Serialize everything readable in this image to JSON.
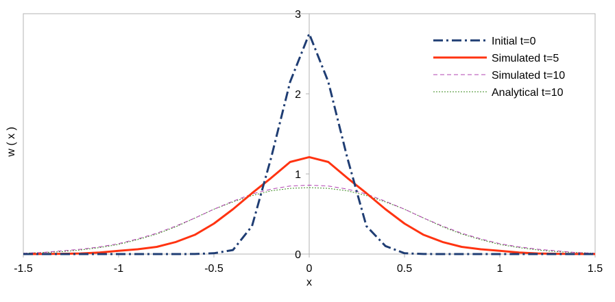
{
  "chart_data": {
    "type": "line",
    "title": "",
    "xlabel": "x",
    "ylabel": "w ( x )",
    "xlim": [
      -1.5,
      1.5
    ],
    "ylim": [
      0,
      3
    ],
    "xticks": [
      -1.5,
      -1,
      -0.5,
      0,
      0.5,
      1,
      1.5
    ],
    "xtick_labels": [
      "-1.5",
      "-1",
      "-0.5",
      "0",
      "0.5",
      "1",
      "1.5"
    ],
    "yticks": [
      0,
      1,
      2,
      3
    ],
    "ytick_labels": [
      "0",
      "1",
      "2",
      "3"
    ],
    "grid": false,
    "legend_position": "top-right",
    "series": [
      {
        "name": "Initial t=0",
        "color": "#1f3d73",
        "style": "dashdot",
        "x": [
          -1.5,
          -1.4,
          -1.3,
          -1.2,
          -1.1,
          -1.0,
          -0.9,
          -0.8,
          -0.7,
          -0.6,
          -0.5,
          -0.4,
          -0.3,
          -0.2,
          -0.1,
          0.0,
          0.1,
          0.2,
          0.3,
          0.4,
          0.5,
          0.6,
          0.7,
          0.8,
          0.9,
          1.0,
          1.1,
          1.2,
          1.3,
          1.4,
          1.5
        ],
        "y": [
          0,
          0,
          0,
          0,
          0,
          0,
          0,
          0,
          0,
          0.001,
          0.01,
          0.05,
          0.35,
          1.2,
          2.15,
          2.75,
          2.15,
          1.2,
          0.35,
          0.1,
          0.01,
          0.001,
          0,
          0,
          0,
          0,
          0,
          0,
          0,
          0,
          0
        ]
      },
      {
        "name": "Simulated t=5",
        "color": "#ff3311",
        "style": "solid",
        "x": [
          -1.5,
          -1.4,
          -1.3,
          -1.2,
          -1.1,
          -1.0,
          -0.9,
          -0.8,
          -0.7,
          -0.6,
          -0.5,
          -0.4,
          -0.3,
          -0.2,
          -0.1,
          0.0,
          0.1,
          0.2,
          0.3,
          0.4,
          0.5,
          0.6,
          0.7,
          0.8,
          0.9,
          1.0,
          1.1,
          1.2,
          1.3,
          1.4,
          1.5
        ],
        "y": [
          0.0,
          0.001,
          0.003,
          0.008,
          0.02,
          0.04,
          0.06,
          0.09,
          0.15,
          0.24,
          0.38,
          0.56,
          0.76,
          0.95,
          1.15,
          1.21,
          1.15,
          0.95,
          0.76,
          0.56,
          0.38,
          0.24,
          0.15,
          0.09,
          0.06,
          0.04,
          0.02,
          0.008,
          0.003,
          0.001,
          0.0
        ]
      },
      {
        "name": "Simulated t=10",
        "color": "#b040b0",
        "style": "dashed",
        "x": [
          -1.5,
          -1.4,
          -1.3,
          -1.2,
          -1.1,
          -1.0,
          -0.9,
          -0.8,
          -0.7,
          -0.6,
          -0.5,
          -0.4,
          -0.3,
          -0.2,
          -0.1,
          0.0,
          0.1,
          0.2,
          0.3,
          0.4,
          0.5,
          0.6,
          0.7,
          0.8,
          0.9,
          1.0,
          1.1,
          1.2,
          1.3,
          1.4,
          1.5
        ],
        "y": [
          0.01,
          0.02,
          0.04,
          0.06,
          0.09,
          0.13,
          0.19,
          0.26,
          0.35,
          0.45,
          0.56,
          0.66,
          0.75,
          0.81,
          0.85,
          0.86,
          0.85,
          0.81,
          0.75,
          0.66,
          0.56,
          0.45,
          0.35,
          0.26,
          0.19,
          0.13,
          0.09,
          0.06,
          0.04,
          0.02,
          0.01
        ]
      },
      {
        "name": "Analytical t=10",
        "color": "#3a8a1e",
        "style": "dotted",
        "x": [
          -1.5,
          -1.4,
          -1.3,
          -1.2,
          -1.1,
          -1.0,
          -0.9,
          -0.8,
          -0.7,
          -0.6,
          -0.5,
          -0.4,
          -0.3,
          -0.2,
          -0.1,
          0.0,
          0.1,
          0.2,
          0.3,
          0.4,
          0.5,
          0.6,
          0.7,
          0.8,
          0.9,
          1.0,
          1.1,
          1.2,
          1.3,
          1.4,
          1.5
        ],
        "y": [
          0.01,
          0.02,
          0.03,
          0.05,
          0.08,
          0.12,
          0.18,
          0.25,
          0.34,
          0.45,
          0.56,
          0.65,
          0.73,
          0.79,
          0.82,
          0.83,
          0.82,
          0.79,
          0.73,
          0.65,
          0.56,
          0.45,
          0.34,
          0.25,
          0.18,
          0.12,
          0.08,
          0.05,
          0.03,
          0.02,
          0.01
        ]
      }
    ]
  }
}
